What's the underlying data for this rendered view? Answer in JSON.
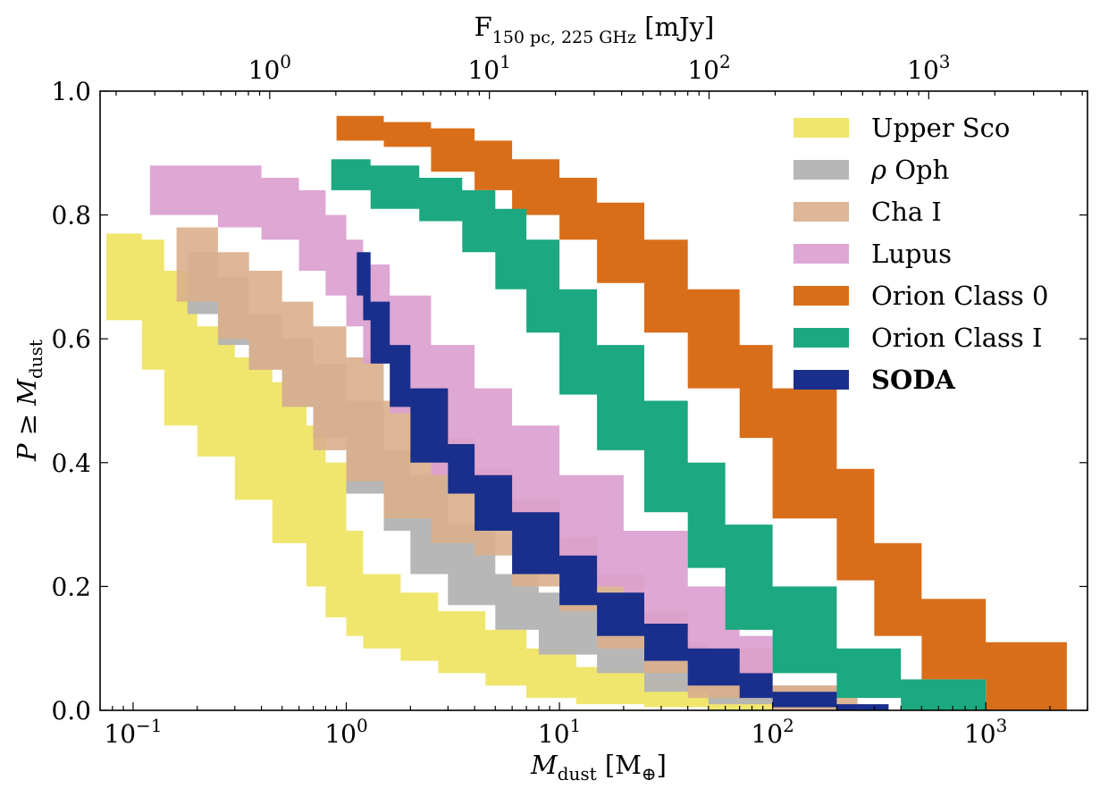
{
  "chart_data": {
    "type": "area",
    "title": "",
    "xlabel": "M_dust [M⊕]",
    "xlabel_main": "M",
    "xlabel_sub": "dust",
    "xlabel_unit_open": " [M",
    "xlabel_unit_sub": "⊕",
    "xlabel_unit_close": "]",
    "ylabel": "P ≥ M_dust",
    "ylabel_main": "P ≥ M",
    "ylabel_sub": "dust",
    "x2label": "F_150 pc, 225 GHz [mJy]",
    "x2label_main": "F",
    "x2label_sub": "150 pc, 225 GHz",
    "x2label_unit": " [mJy]",
    "xscale": "log",
    "xlim": [
      0.07,
      3000
    ],
    "ylim": [
      0.0,
      1.0
    ],
    "x2scale": "log",
    "x2lim": [
      0.169,
      5280
    ],
    "xticks": [
      {
        "base": "10",
        "exp": "−1",
        "value": 0.1
      },
      {
        "base": "10",
        "exp": "0",
        "value": 1
      },
      {
        "base": "10",
        "exp": "1",
        "value": 10
      },
      {
        "base": "10",
        "exp": "2",
        "value": 100
      },
      {
        "base": "10",
        "exp": "3",
        "value": 1000
      }
    ],
    "x2ticks": [
      {
        "base": "10",
        "exp": "0",
        "value": 1
      },
      {
        "base": "10",
        "exp": "1",
        "value": 10
      },
      {
        "base": "10",
        "exp": "2",
        "value": 100
      },
      {
        "base": "10",
        "exp": "3",
        "value": 1000
      }
    ],
    "yticks": [
      "0.0",
      "0.2",
      "0.4",
      "0.6",
      "0.8",
      "1.0"
    ],
    "legend_position": "top-right",
    "series": [
      {
        "name": "Upper Sco",
        "color": "#f0e66e",
        "bold": false,
        "opacity": 1.0,
        "x": [
          0.075,
          0.11,
          0.14,
          0.2,
          0.3,
          0.45,
          0.65,
          0.8,
          1.0,
          1.2,
          1.8,
          2.7,
          4.5,
          7,
          12,
          25,
          50,
          100
        ],
        "upper": [
          0.77,
          0.76,
          0.71,
          0.62,
          0.57,
          0.53,
          0.46,
          0.4,
          0.29,
          0.22,
          0.19,
          0.16,
          0.13,
          0.1,
          0.07,
          0.05,
          0.03,
          0.02
        ],
        "lower": [
          0.66,
          0.63,
          0.55,
          0.46,
          0.41,
          0.34,
          0.27,
          0.2,
          0.15,
          0.12,
          0.1,
          0.08,
          0.06,
          0.04,
          0.02,
          0.01,
          0.005,
          0.0
        ]
      },
      {
        "name": "ρ Oph",
        "color": "#b3b3b3",
        "bold": false,
        "opacity": 0.95,
        "x": [
          0.18,
          0.25,
          0.35,
          0.5,
          0.7,
          1.0,
          1.5,
          2.0,
          3.0,
          5,
          8,
          15,
          25,
          50,
          100,
          200
        ],
        "upper": [
          0.74,
          0.7,
          0.64,
          0.6,
          0.56,
          0.5,
          0.42,
          0.38,
          0.3,
          0.22,
          0.19,
          0.14,
          0.11,
          0.07,
          0.04,
          0.01
        ],
        "lower": [
          0.68,
          0.64,
          0.59,
          0.55,
          0.49,
          0.44,
          0.35,
          0.29,
          0.22,
          0.17,
          0.13,
          0.09,
          0.06,
          0.03,
          0.01,
          0.0
        ]
      },
      {
        "name": "Cha I",
        "color": "#d9af8c",
        "bold": false,
        "opacity": 0.9,
        "x": [
          0.16,
          0.25,
          0.35,
          0.5,
          0.7,
          1.0,
          1.5,
          2.5,
          4,
          6,
          10,
          15,
          25,
          40,
          100,
          250
        ],
        "upper": [
          0.78,
          0.74,
          0.71,
          0.66,
          0.62,
          0.57,
          0.5,
          0.44,
          0.39,
          0.34,
          0.28,
          0.22,
          0.16,
          0.1,
          0.04,
          0.01
        ],
        "lower": [
          0.68,
          0.66,
          0.6,
          0.55,
          0.49,
          0.42,
          0.37,
          0.31,
          0.27,
          0.25,
          0.2,
          0.16,
          0.1,
          0.06,
          0.02,
          0.0
        ]
      },
      {
        "name": "Lupus",
        "color": "#dba0d0",
        "bold": false,
        "opacity": 0.92,
        "x": [
          0.12,
          0.25,
          0.4,
          0.6,
          0.8,
          1.0,
          1.2,
          1.6,
          2.5,
          4,
          6,
          10,
          20,
          40,
          70,
          100
        ],
        "upper": [
          0.88,
          0.88,
          0.86,
          0.84,
          0.8,
          0.76,
          0.72,
          0.67,
          0.59,
          0.52,
          0.46,
          0.38,
          0.29,
          0.2,
          0.12,
          0.07
        ],
        "lower": [
          0.8,
          0.8,
          0.78,
          0.76,
          0.71,
          0.67,
          0.62,
          0.56,
          0.48,
          0.38,
          0.31,
          0.26,
          0.2,
          0.13,
          0.07,
          0.02
        ]
      },
      {
        "name": "Orion Class 0",
        "color": "#d96e1a",
        "bold": false,
        "opacity": 1.0,
        "x": [
          0.9,
          1.5,
          2.5,
          4,
          6,
          10,
          15,
          25,
          40,
          70,
          100,
          200,
          300,
          500,
          1000,
          2400
        ],
        "upper": [
          0.96,
          0.95,
          0.94,
          0.92,
          0.89,
          0.86,
          0.82,
          0.76,
          0.68,
          0.59,
          0.52,
          0.39,
          0.27,
          0.18,
          0.11,
          0.02
        ],
        "lower": [
          0.92,
          0.92,
          0.91,
          0.87,
          0.84,
          0.8,
          0.76,
          0.69,
          0.61,
          0.52,
          0.44,
          0.31,
          0.21,
          0.12,
          0.05,
          0.0
        ]
      },
      {
        "name": "Orion Class I",
        "color": "#1ca880",
        "bold": false,
        "opacity": 1.0,
        "x": [
          0.85,
          1.3,
          2.2,
          3.5,
          5,
          7,
          10,
          15,
          25,
          40,
          60,
          100,
          200,
          400,
          1000
        ],
        "upper": [
          0.89,
          0.88,
          0.86,
          0.84,
          0.81,
          0.76,
          0.68,
          0.59,
          0.5,
          0.4,
          0.3,
          0.2,
          0.1,
          0.05,
          0.01
        ],
        "lower": [
          0.84,
          0.84,
          0.81,
          0.79,
          0.74,
          0.68,
          0.61,
          0.51,
          0.42,
          0.32,
          0.23,
          0.13,
          0.06,
          0.02,
          0.0
        ]
      },
      {
        "name": "SODA",
        "color": "#1a2f8c",
        "bold": true,
        "opacity": 1.0,
        "x": [
          1.12,
          1.2,
          1.3,
          1.6,
          2.0,
          3.0,
          4.0,
          6,
          10,
          15,
          25,
          40,
          70,
          100,
          200,
          350
        ],
        "upper": [
          0.74,
          0.74,
          0.66,
          0.59,
          0.52,
          0.43,
          0.38,
          0.32,
          0.25,
          0.19,
          0.14,
          0.1,
          0.06,
          0.03,
          0.01,
          0.0
        ],
        "lower": [
          0.67,
          0.67,
          0.63,
          0.56,
          0.49,
          0.4,
          0.35,
          0.29,
          0.22,
          0.17,
          0.12,
          0.08,
          0.04,
          0.02,
          0.005,
          0.0
        ]
      }
    ]
  }
}
